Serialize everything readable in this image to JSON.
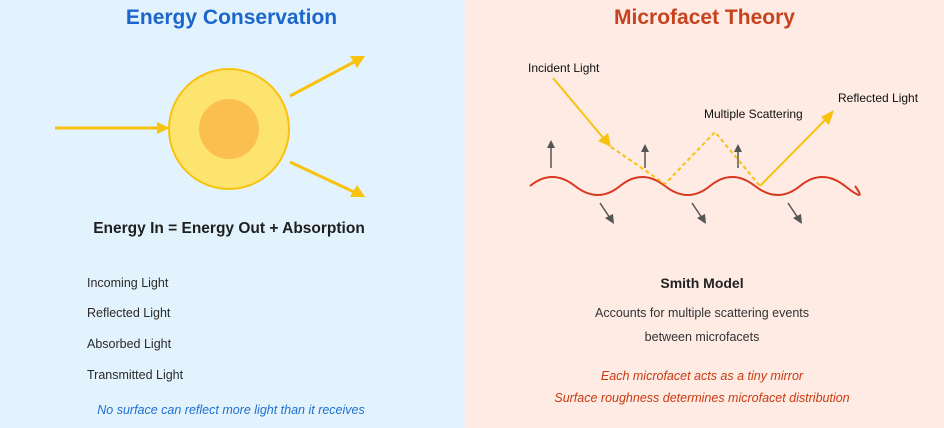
{
  "energy": {
    "title": "Energy Conservation",
    "equation": "Energy In = Energy Out + Absorption",
    "legend": [
      "Incoming Light",
      "Reflected Light",
      "Absorbed Light",
      "Transmitted Light"
    ],
    "note": "No surface can reflect more light than it receives",
    "colors": {
      "light": "#f9c20f",
      "sphere_outer": "#fde46e",
      "sphere_inner": "#fbbf4f"
    }
  },
  "microfacet": {
    "title": "Microfacet Theory",
    "labels": {
      "incident": "Incident Light",
      "multiple": "Multiple Scattering",
      "reflected": "Reflected Light"
    },
    "model_title": "Smith Model",
    "model_desc": [
      "Accounts for multiple scattering events",
      "between microfacets"
    ],
    "notes": [
      "Each microfacet acts as a tiny mirror",
      "Surface roughness determines microfacet distribution"
    ],
    "colors": {
      "surface": "#d9381e",
      "light": "#f9c20f",
      "normal": "#555555"
    }
  }
}
